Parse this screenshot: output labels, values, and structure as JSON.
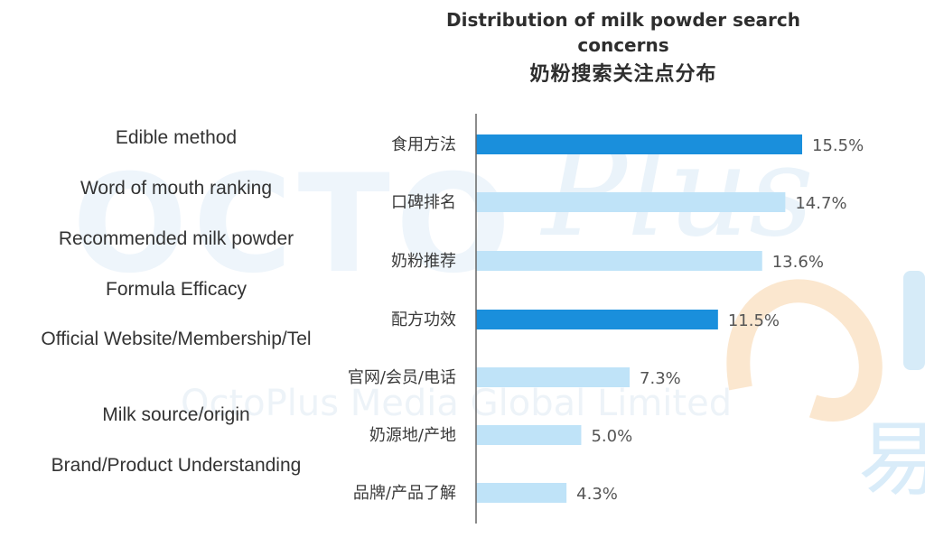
{
  "title_en": "Distribution of milk powder search concerns",
  "title_cn": "奶粉搜索关注点分布",
  "watermark": {
    "brand_large": "OCTO",
    "brand_script": "Plus",
    "company": "OctoPlus Media Global Limited",
    "cn_mark": "易"
  },
  "english_labels": [
    "Edible method",
    "Word of mouth ranking",
    "Recommended milk powder",
    "Formula Efficacy",
    "Official Website/Membership/Tel",
    "Milk source/origin",
    "Brand/Product Understanding"
  ],
  "colors": {
    "highlight": "#1a8fdc",
    "normal": "#bfe3f8",
    "axis": "#666666"
  },
  "chart_data": {
    "type": "bar",
    "orientation": "horizontal",
    "categories": [
      "食用方法",
      "口碑排名",
      "奶粉推荐",
      "配方功效",
      "官网/会员/电话",
      "奶源地/产地",
      "品牌/产品了解"
    ],
    "values": [
      15.5,
      14.7,
      13.6,
      11.5,
      7.3,
      5.0,
      4.3
    ],
    "value_labels": [
      "15.5%",
      "14.7%",
      "13.6%",
      "11.5%",
      "7.3%",
      "5.0%",
      "4.3%"
    ],
    "highlighted": [
      true,
      false,
      false,
      true,
      false,
      false,
      false
    ],
    "xlim": [
      0,
      16
    ],
    "title": "奶粉搜索关注点分布",
    "grid": false,
    "legend": "none"
  }
}
